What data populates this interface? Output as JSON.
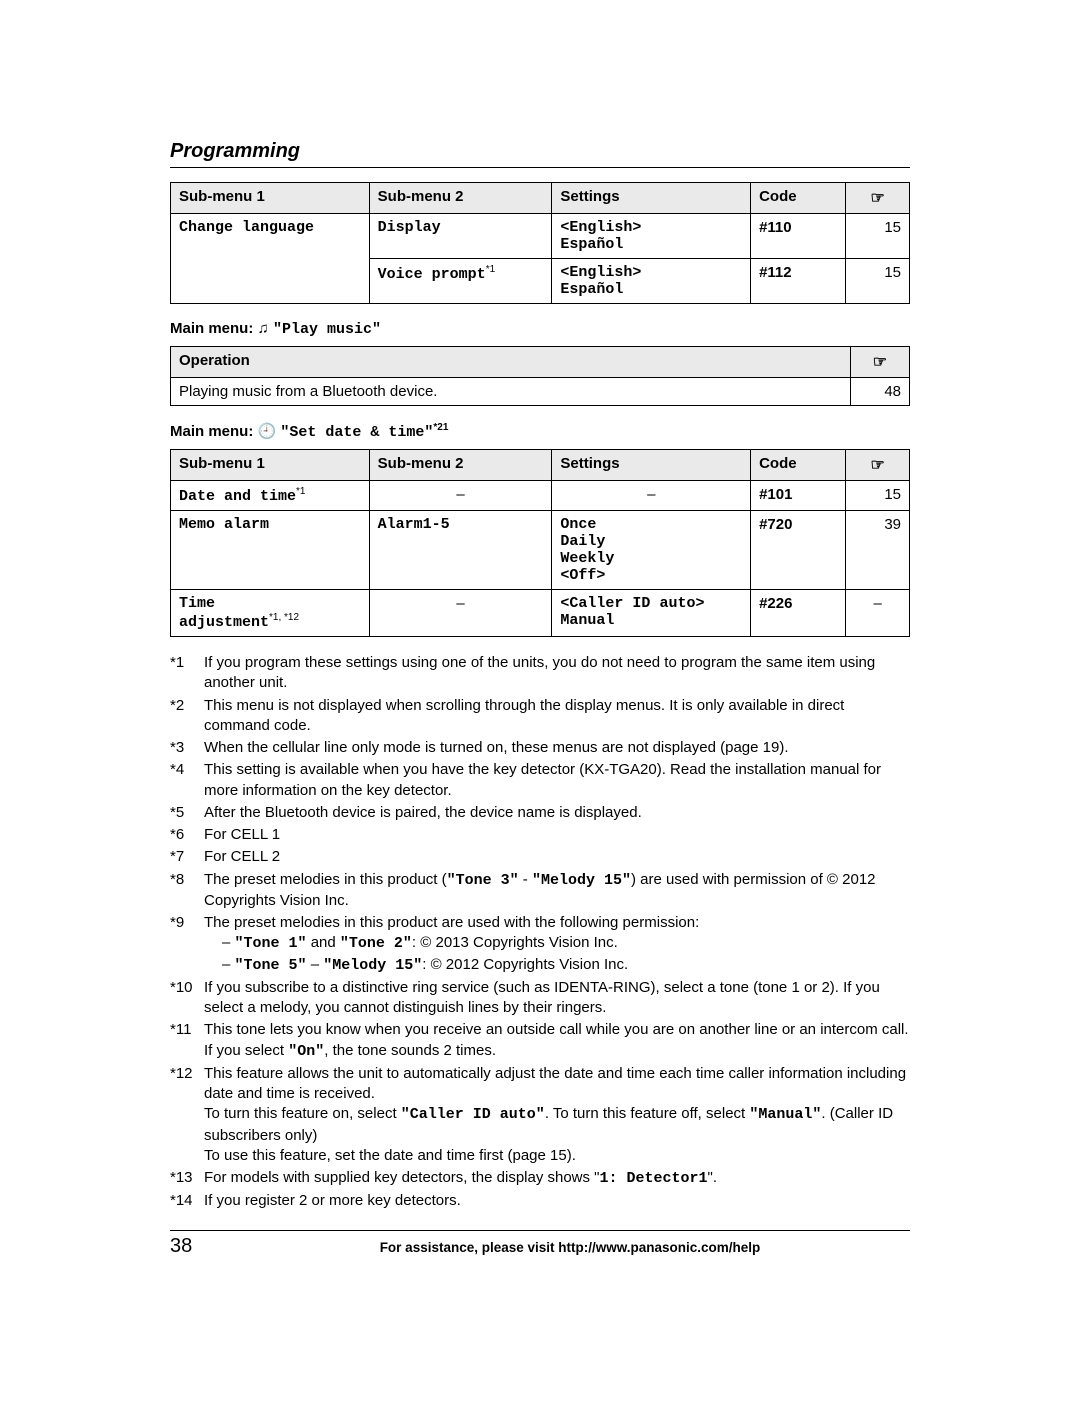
{
  "section_title": "Programming",
  "table1": {
    "headers": [
      "Sub-menu 1",
      "Sub-menu 2",
      "Settings",
      "Code",
      "☞"
    ],
    "rows": [
      {
        "sub1": "Change language",
        "sub2": "Display",
        "settings": "<English>\nEspañol",
        "code": "#110",
        "page": "15",
        "sub1_rowspan": 2
      },
      {
        "sub2": "Voice prompt",
        "sub2_sup": "*1",
        "settings": "<English>\nEspañol",
        "code": "#112",
        "page": "15"
      }
    ]
  },
  "menu2": {
    "prefix": "Main menu:",
    "icon": "♫",
    "label": "\"Play music\""
  },
  "table2": {
    "headers": [
      "Operation",
      "☞"
    ],
    "rows": [
      {
        "op": "Playing music from a Bluetooth device.",
        "page": "48"
      }
    ]
  },
  "menu3": {
    "prefix": "Main menu:",
    "icon": "🕘",
    "label": "\"Set date & time\"",
    "sup": "*21"
  },
  "table3": {
    "headers": [
      "Sub-menu 1",
      "Sub-menu 2",
      "Settings",
      "Code",
      "☞"
    ],
    "rows": [
      {
        "sub1": "Date and time",
        "sub1_sup": "*1",
        "sub2": "–",
        "settings": "–",
        "code": "#101",
        "page": "15"
      },
      {
        "sub1": "Memo alarm",
        "sub2": "Alarm1-5",
        "settings": "Once\nDaily\nWeekly\n<Off>",
        "code": "#720",
        "page": "39"
      },
      {
        "sub1": "Time\nadjustment",
        "sub1_sup": "*1, *12",
        "sub2": "–",
        "settings": "<Caller ID auto>\nManual",
        "code": "#226",
        "page": "–"
      }
    ]
  },
  "footnotes": [
    {
      "n": "*1",
      "t": "If you program these settings using one of the units, you do not need to program the same item using another unit."
    },
    {
      "n": "*2",
      "t": "This menu is not displayed when scrolling through the display menus. It is only available in direct command code."
    },
    {
      "n": "*3",
      "t": "When the cellular line only mode is turned on, these menus are not displayed (page 19)."
    },
    {
      "n": "*4",
      "t": "This setting is available when you have the key detector (KX-TGA20). Read the installation manual for more information on the key detector."
    },
    {
      "n": "*5",
      "t": "After the Bluetooth device is paired, the device name is displayed."
    },
    {
      "n": "*6",
      "t": "For CELL 1"
    },
    {
      "n": "*7",
      "t": "For CELL 2"
    },
    {
      "n": "*8",
      "html": "The preset melodies in this product (<span class='mono'>\"Tone 3\"</span> - <span class='mono'>\"Melody 15\"</span>) are used with permission of © 2012 Copyrights Vision Inc."
    },
    {
      "n": "*9",
      "html": "The preset melodies in this product are used with the following permission:<div class='fn-sub'>– <span class='mono'>\"Tone 1\"</span> and <span class='mono'>\"Tone 2\"</span>: © 2013 Copyrights Vision Inc.</div><div class='fn-sub'>– <span class='mono'>\"Tone 5\"</span> – <span class='mono'>\"Melody 15\"</span>: © 2012 Copyrights Vision Inc.</div>"
    },
    {
      "n": "*10",
      "t": "If you subscribe to a distinctive ring service (such as IDENTA-RING), select a tone (tone 1 or 2). If you select a melody, you cannot distinguish lines by their ringers."
    },
    {
      "n": "*11",
      "html": "This tone lets you know when you receive an outside call while you are on another line or an intercom call. If you select <span class='mono'>\"On\"</span>, the tone sounds 2 times."
    },
    {
      "n": "*12",
      "html": "This feature allows the unit to automatically adjust the date and time each time caller information including date and time is received.<br>To turn this feature on, select <span class='mono'>\"Caller ID auto\"</span>. To turn this feature off, select <span class='mono'>\"Manual\"</span>. (Caller ID subscribers only)<br>To use this feature, set the date and time first (page 15)."
    },
    {
      "n": "*13",
      "html": "For models with supplied key detectors, the display shows \"<span class='mono'>1: Detector1</span>\"."
    },
    {
      "n": "*14",
      "t": "If you register 2 or more key detectors."
    }
  ],
  "footer": {
    "page": "38",
    "text": "For assistance, please visit http://www.panasonic.com/help"
  }
}
